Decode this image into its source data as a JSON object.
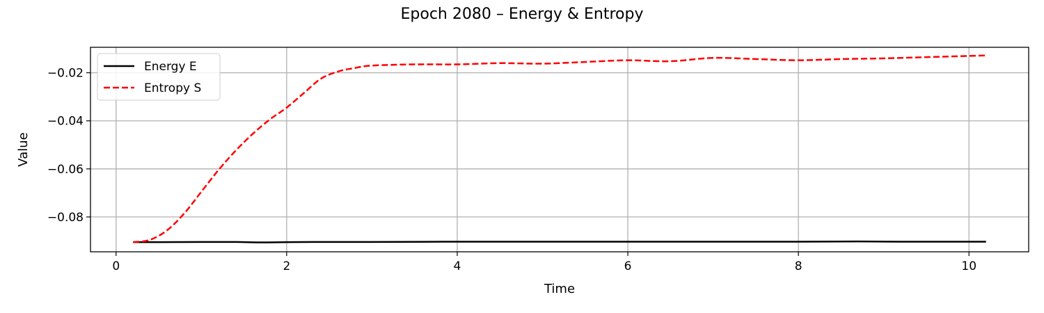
{
  "chart_data": {
    "type": "line",
    "title": "Epoch 2080 – Energy & Entropy",
    "xlabel": "Time",
    "ylabel": "Value",
    "xlim": [
      -0.3,
      10.7
    ],
    "ylim": [
      -0.0945,
      -0.0094
    ],
    "xticks": [
      0,
      2,
      4,
      6,
      8,
      10
    ],
    "xtick_labels": [
      "0",
      "2",
      "4",
      "6",
      "8",
      "10"
    ],
    "yticks": [
      -0.08,
      -0.06,
      -0.04,
      -0.02
    ],
    "ytick_labels": [
      "−0.08",
      "−0.06",
      "−0.04",
      "−0.02"
    ],
    "grid": true,
    "legend_position": "top-left",
    "series": [
      {
        "name": "Energy E",
        "color": "#000000",
        "style": "solid",
        "x": [
          0.2,
          0.5,
          1.0,
          1.4,
          1.7,
          2.0,
          2.5,
          3.0,
          4.0,
          5.0,
          6.0,
          7.0,
          8.0,
          8.7,
          9.2,
          10.2
        ],
        "y": [
          -0.0905,
          -0.0905,
          -0.0904,
          -0.0904,
          -0.0906,
          -0.0905,
          -0.0904,
          -0.0904,
          -0.0903,
          -0.0903,
          -0.0903,
          -0.0903,
          -0.0903,
          -0.0902,
          -0.0903,
          -0.0903
        ]
      },
      {
        "name": "Entropy S",
        "color": "#ff0000",
        "style": "dashed",
        "x": [
          0.2,
          0.4,
          0.6,
          0.8,
          1.0,
          1.2,
          1.4,
          1.6,
          1.8,
          2.0,
          2.2,
          2.4,
          2.6,
          2.8,
          3.0,
          3.5,
          4.0,
          4.5,
          5.0,
          5.5,
          6.0,
          6.5,
          7.0,
          7.5,
          8.0,
          8.5,
          9.0,
          9.5,
          10.0,
          10.2
        ],
        "y": [
          -0.0905,
          -0.0895,
          -0.0855,
          -0.0785,
          -0.0695,
          -0.0605,
          -0.0525,
          -0.0455,
          -0.0395,
          -0.0345,
          -0.0285,
          -0.0225,
          -0.0195,
          -0.018,
          -0.017,
          -0.0165,
          -0.0165,
          -0.016,
          -0.0162,
          -0.0155,
          -0.0148,
          -0.0152,
          -0.0138,
          -0.0143,
          -0.0148,
          -0.0143,
          -0.014,
          -0.0135,
          -0.013,
          -0.0128
        ]
      }
    ]
  }
}
